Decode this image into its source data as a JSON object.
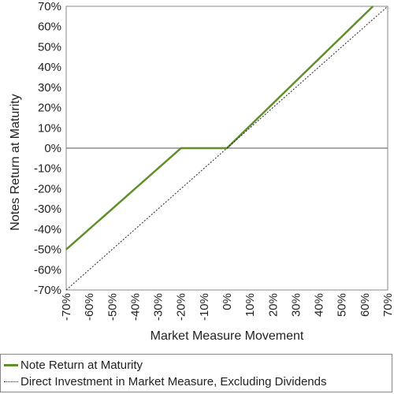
{
  "chart_data": {
    "type": "line",
    "xlabel": "Market Measure Movement",
    "ylabel": "Notes Return at Maturity",
    "xlim": [
      -70,
      70
    ],
    "ylim": [
      -70,
      70
    ],
    "x_ticks": [
      "-70%",
      "-60%",
      "-50%",
      "-40%",
      "-30%",
      "-20%",
      "-10%",
      "0%",
      "10%",
      "20%",
      "30%",
      "40%",
      "50%",
      "60%",
      "70%"
    ],
    "y_ticks": [
      "70%",
      "60%",
      "50%",
      "40%",
      "30%",
      "20%",
      "10%",
      "0%",
      "-10%",
      "-20%",
      "-30%",
      "-40%",
      "-50%",
      "-60%",
      "-70%"
    ],
    "series": [
      {
        "name": "Note Return at Maturity",
        "color": "#5e8f2a",
        "style": "solid",
        "points": [
          [
            -70,
            -50
          ],
          [
            -20,
            0
          ],
          [
            0,
            0
          ],
          [
            63.6,
            70
          ]
        ]
      },
      {
        "name": "Direct Investment in Market Measure, Excluding Dividends",
        "color": "#222222",
        "style": "dotted",
        "points": [
          [
            -70,
            -70
          ],
          [
            70,
            70
          ]
        ]
      }
    ],
    "grid": false,
    "zero_line": true,
    "legend_position": "bottom"
  }
}
